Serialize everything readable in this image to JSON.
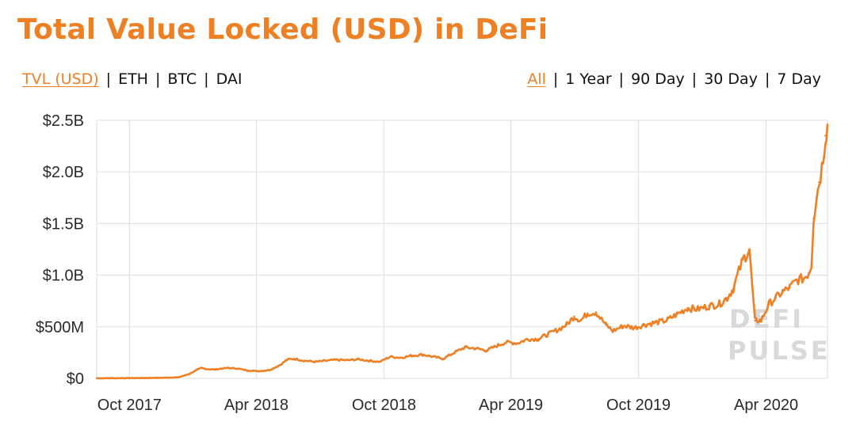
{
  "title": "Total Value Locked (USD) in DeFi",
  "metric_options": [
    {
      "label": "TVL (USD)",
      "active": true
    },
    {
      "label": "ETH",
      "active": false
    },
    {
      "label": "BTC",
      "active": false
    },
    {
      "label": "DAI",
      "active": false
    }
  ],
  "range_options": [
    {
      "label": "All",
      "active": true
    },
    {
      "label": "1 Year",
      "active": false
    },
    {
      "label": "90 Day",
      "active": false
    },
    {
      "label": "30 Day",
      "active": false
    },
    {
      "label": "7 Day",
      "active": false
    }
  ],
  "separator": "|",
  "watermark": {
    "line1": "DEFI",
    "line2": "PULSE"
  },
  "colors": {
    "accent": "#ef7f23",
    "grid": "#e3e3e3",
    "text": "#2a2a2a"
  },
  "chart_data": {
    "type": "area",
    "title": "Total Value Locked (USD) in DeFi",
    "xlabel": "",
    "ylabel": "",
    "x_range": [
      "2017-08-15",
      "2020-06-28"
    ],
    "ylim": [
      0,
      2500000000
    ],
    "y_ticks": [
      {
        "value": 0,
        "label": "$0"
      },
      {
        "value": 500000000,
        "label": "$500M"
      },
      {
        "value": 1000000000,
        "label": "$1.0B"
      },
      {
        "value": 1500000000,
        "label": "$1.5B"
      },
      {
        "value": 2000000000,
        "label": "$2.0B"
      },
      {
        "value": 2500000000,
        "label": "$2.5B"
      }
    ],
    "x_ticks": [
      {
        "date": "2017-10-01",
        "label": "Oct 2017"
      },
      {
        "date": "2018-04-01",
        "label": "Apr 2018"
      },
      {
        "date": "2018-10-01",
        "label": "Oct 2018"
      },
      {
        "date": "2019-04-01",
        "label": "Apr 2019"
      },
      {
        "date": "2019-10-01",
        "label": "Oct 2019"
      },
      {
        "date": "2020-04-01",
        "label": "Apr 2020"
      }
    ],
    "grid": true,
    "legend": "none",
    "series": [
      {
        "x": [
          "2017-08-15",
          "2017-09-15",
          "2017-10-15",
          "2017-11-15",
          "2017-12-10",
          "2017-12-25",
          "2018-01-05",
          "2018-01-12",
          "2018-01-20",
          "2018-02-01",
          "2018-02-10",
          "2018-02-20",
          "2018-03-05",
          "2018-03-20",
          "2018-04-05",
          "2018-04-20",
          "2018-05-05",
          "2018-05-15",
          "2018-05-25",
          "2018-06-10",
          "2018-06-25",
          "2018-07-10",
          "2018-07-25",
          "2018-08-10",
          "2018-08-25",
          "2018-09-10",
          "2018-09-25",
          "2018-10-10",
          "2018-10-25",
          "2018-11-10",
          "2018-11-25",
          "2018-12-10",
          "2018-12-25",
          "2019-01-10",
          "2019-01-25",
          "2019-02-10",
          "2019-02-25",
          "2019-03-10",
          "2019-03-25",
          "2019-04-10",
          "2019-04-25",
          "2019-05-10",
          "2019-05-25",
          "2019-06-10",
          "2019-06-20",
          "2019-07-01",
          "2019-07-10",
          "2019-07-20",
          "2019-08-01",
          "2019-08-15",
          "2019-08-25",
          "2019-09-10",
          "2019-09-25",
          "2019-10-10",
          "2019-10-25",
          "2019-11-10",
          "2019-11-25",
          "2019-12-10",
          "2019-12-25",
          "2020-01-10",
          "2020-01-25",
          "2020-02-05",
          "2020-02-14",
          "2020-02-20",
          "2020-02-28",
          "2020-03-08",
          "2020-03-12",
          "2020-03-16",
          "2020-03-25",
          "2020-04-05",
          "2020-04-15",
          "2020-04-25",
          "2020-05-05",
          "2020-05-15",
          "2020-05-25",
          "2020-06-01",
          "2020-06-05",
          "2020-06-08",
          "2020-06-12",
          "2020-06-16",
          "2020-06-20",
          "2020-06-25",
          "2020-06-28"
        ],
        "y": [
          1000000,
          2000000,
          3000000,
          5000000,
          10000000,
          40000000,
          80000000,
          100000000,
          90000000,
          85000000,
          95000000,
          100000000,
          95000000,
          75000000,
          70000000,
          80000000,
          130000000,
          180000000,
          190000000,
          170000000,
          160000000,
          170000000,
          180000000,
          175000000,
          185000000,
          170000000,
          160000000,
          210000000,
          200000000,
          220000000,
          230000000,
          210000000,
          190000000,
          250000000,
          300000000,
          290000000,
          270000000,
          310000000,
          350000000,
          340000000,
          380000000,
          380000000,
          430000000,
          480000000,
          520000000,
          600000000,
          560000000,
          630000000,
          640000000,
          520000000,
          460000000,
          510000000,
          490000000,
          520000000,
          540000000,
          560000000,
          620000000,
          680000000,
          670000000,
          700000000,
          720000000,
          780000000,
          870000000,
          1000000000,
          1150000000,
          1250000000,
          900000000,
          560000000,
          560000000,
          720000000,
          780000000,
          840000000,
          880000000,
          950000000,
          970000000,
          1020000000,
          1100000000,
          1550000000,
          1750000000,
          1900000000,
          2050000000,
          2350000000,
          2460000000
        ]
      }
    ]
  }
}
